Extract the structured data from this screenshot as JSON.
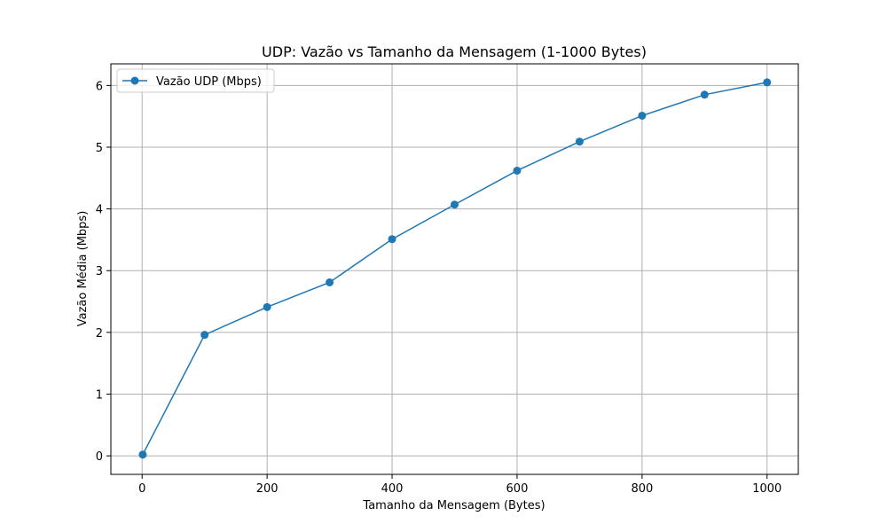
{
  "chart_data": {
    "type": "line",
    "title": "UDP: Vazão vs Tamanho da Mensagem (1-1000 Bytes)",
    "xlabel": "Tamanho da Mensagem (Bytes)",
    "ylabel": "Vazão Média (Mbps)",
    "xlim": [
      -50,
      1050
    ],
    "ylim": [
      -0.3,
      6.35
    ],
    "x_ticks": [
      0,
      200,
      400,
      600,
      800,
      1000
    ],
    "y_ticks": [
      0,
      1,
      2,
      3,
      4,
      5,
      6
    ],
    "grid": true,
    "legend_position": "top-left",
    "series": [
      {
        "name": "Vazão UDP (Mbps)",
        "color": "#1f77b4",
        "marker": "circle",
        "x": [
          1,
          100,
          200,
          300,
          400,
          500,
          600,
          700,
          800,
          900,
          1000
        ],
        "y": [
          0.02,
          1.96,
          2.41,
          2.81,
          3.51,
          4.07,
          4.62,
          5.09,
          5.51,
          5.85,
          6.05
        ]
      }
    ]
  }
}
